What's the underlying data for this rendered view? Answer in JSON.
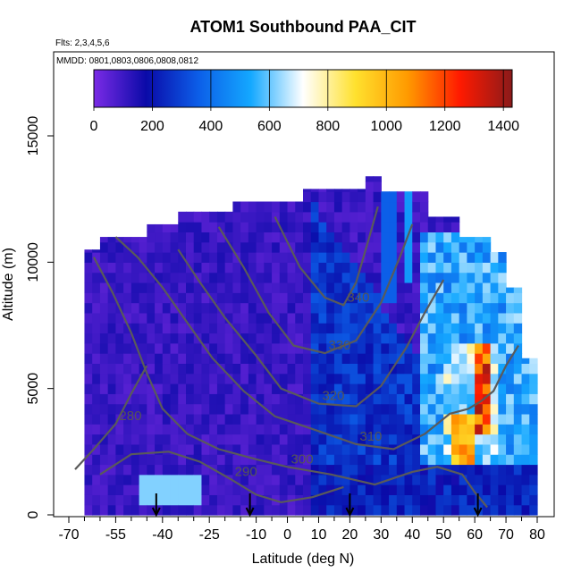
{
  "chart_data": {
    "type": "heatmap",
    "title": "ATOM1 Southbound PAA_CIT",
    "subtitle_flights": "Flts: 2,3,4,5,6",
    "subtitle_dates": "MMDD: 0801,0803,0806,0808,0812",
    "xlabel": "Latitude (deg N)",
    "ylabel": "Altitude (m)",
    "xlim": [
      -70,
      80
    ],
    "ylim": [
      0,
      17500
    ],
    "x_tick_labels": [
      "-70",
      "-55",
      "-40",
      "-25",
      "-10",
      "0",
      "10",
      "20",
      "30",
      "40",
      "50",
      "60",
      "70",
      "80"
    ],
    "x_tick_values": [
      -70,
      -55,
      -40,
      -25,
      -10,
      0,
      10,
      20,
      30,
      40,
      50,
      60,
      70,
      80
    ],
    "x_minor_ticks": [
      -65,
      -60,
      -50,
      -45,
      -35,
      -30,
      -20,
      -15,
      -5,
      5,
      15,
      25,
      35,
      45,
      55,
      65,
      75
    ],
    "y_ticks": [
      0,
      5000,
      10000,
      15000
    ],
    "y_tick_labels": [
      "0",
      "5000",
      "10000",
      "15000"
    ],
    "colorbar": {
      "range": [
        0,
        1430
      ],
      "ticks": [
        0,
        200,
        400,
        600,
        800,
        1000,
        1200,
        1400
      ],
      "tick_labels": [
        "0",
        "200",
        "400",
        "600",
        "800",
        "1000",
        "1200",
        "1400"
      ],
      "colors": [
        "#7b2be6",
        "#0a0aa8",
        "#0c5ee8",
        "#14a8ff",
        "#ffffff",
        "#ffe12e",
        "#ff9a00",
        "#ff1a00",
        "#8b1a1a"
      ]
    },
    "grid": false,
    "potential_temperature_contours": [
      {
        "label": "280",
        "points": [
          [
            -68,
            1800
          ],
          [
            -62,
            2600
          ],
          [
            -55,
            3600
          ],
          [
            -50,
            4800
          ],
          [
            -45,
            5900
          ]
        ]
      },
      {
        "label": "290",
        "points": [
          [
            -60,
            1600
          ],
          [
            -50,
            2400
          ],
          [
            -38,
            2500
          ],
          [
            -28,
            2100
          ],
          [
            -18,
            1400
          ],
          [
            -10,
            800
          ],
          [
            -2,
            500
          ],
          [
            8,
            700
          ],
          [
            18,
            1100
          ]
        ]
      },
      {
        "label": "300",
        "points": [
          [
            -62,
            10200
          ],
          [
            -56,
            8800
          ],
          [
            -50,
            7200
          ],
          [
            -45,
            5600
          ],
          [
            -40,
            4200
          ],
          [
            -32,
            3200
          ],
          [
            -22,
            2600
          ],
          [
            -10,
            2200
          ],
          [
            0,
            1900
          ],
          [
            14,
            1600
          ],
          [
            28,
            1200
          ],
          [
            40,
            1700
          ],
          [
            48,
            1900
          ],
          [
            56,
            1600
          ],
          [
            60,
            900
          ],
          [
            64,
            300
          ]
        ]
      },
      {
        "label": "310",
        "points": [
          [
            -55,
            11000
          ],
          [
            -48,
            10200
          ],
          [
            -40,
            9000
          ],
          [
            -32,
            7600
          ],
          [
            -24,
            6200
          ],
          [
            -14,
            4900
          ],
          [
            -4,
            3900
          ],
          [
            8,
            3400
          ],
          [
            22,
            2800
          ],
          [
            34,
            2600
          ],
          [
            44,
            3200
          ],
          [
            52,
            4000
          ],
          [
            58,
            4200
          ],
          [
            62,
            4500
          ],
          [
            66,
            4900
          ],
          [
            70,
            5900
          ],
          [
            74,
            6700
          ]
        ]
      },
      {
        "label": "320",
        "points": [
          [
            -35,
            10500
          ],
          [
            -28,
            9200
          ],
          [
            -20,
            7800
          ],
          [
            -10,
            6300
          ],
          [
            -2,
            5000
          ],
          [
            10,
            4400
          ],
          [
            22,
            4300
          ],
          [
            30,
            5100
          ],
          [
            38,
            6600
          ],
          [
            44,
            8000
          ],
          [
            50,
            9300
          ]
        ]
      },
      {
        "label": "330",
        "points": [
          [
            -22,
            11400
          ],
          [
            -14,
            9800
          ],
          [
            -6,
            8000
          ],
          [
            2,
            6700
          ],
          [
            12,
            6400
          ],
          [
            22,
            6900
          ],
          [
            30,
            8400
          ],
          [
            36,
            10200
          ],
          [
            40,
            11500
          ]
        ]
      },
      {
        "label": "340",
        "points": [
          [
            -4,
            11800
          ],
          [
            0,
            10800
          ],
          [
            4,
            9800
          ],
          [
            12,
            8600
          ],
          [
            18,
            8300
          ],
          [
            22,
            9200
          ],
          [
            26,
            10900
          ],
          [
            29,
            12200
          ]
        ]
      }
    ],
    "flight_markers_latitude": [
      -42,
      -12,
      20,
      61
    ]
  }
}
